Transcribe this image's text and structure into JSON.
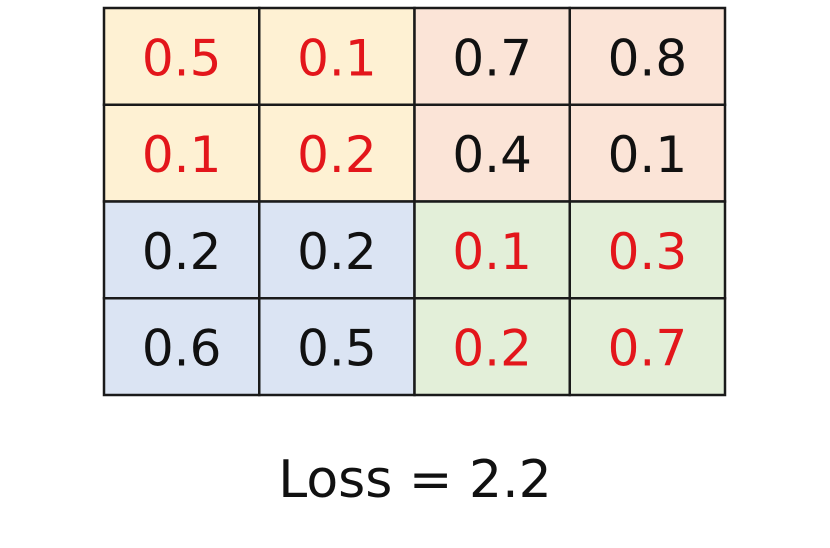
{
  "table": {
    "rows": [
      [
        "0.5",
        "0.1",
        "0.7",
        "0.8"
      ],
      [
        "0.1",
        "0.2",
        "0.4",
        "0.1"
      ],
      [
        "0.2",
        "0.2",
        "0.1",
        "0.3"
      ],
      [
        "0.6",
        "0.5",
        "0.2",
        "0.7"
      ]
    ]
  },
  "caption": "Loss = 2.2"
}
